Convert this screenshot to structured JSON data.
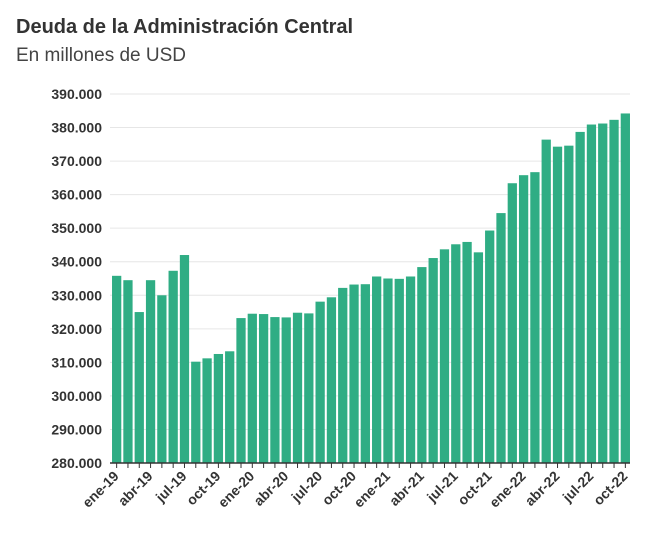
{
  "header": {
    "title": "Deuda de la Administración Central",
    "subtitle": "En millones de USD"
  },
  "colors": {
    "bar": "#2fad84",
    "grid": "#e6e6e6",
    "axis": "#333333",
    "text": "#333333"
  },
  "chart_data": {
    "type": "bar",
    "title": "Deuda de la Administración Central",
    "subtitle": "En millones de USD",
    "xlabel": "",
    "ylabel": "",
    "ylim": [
      280000,
      390000
    ],
    "yticks": [
      280000,
      290000,
      300000,
      310000,
      320000,
      330000,
      340000,
      350000,
      360000,
      370000,
      380000,
      390000
    ],
    "ytick_labels": [
      "280.000",
      "290.000",
      "300.000",
      "310.000",
      "320.000",
      "330.000",
      "340.000",
      "350.000",
      "360.000",
      "370.000",
      "380.000",
      "390.000"
    ],
    "grid": true,
    "categories": [
      "ene-19",
      "feb-19",
      "mar-19",
      "abr-19",
      "may-19",
      "jun-19",
      "jul-19",
      "ago-19",
      "sep-19",
      "oct-19",
      "nov-19",
      "dic-19",
      "ene-20",
      "feb-20",
      "mar-20",
      "abr-20",
      "may-20",
      "jun-20",
      "jul-20",
      "ago-20",
      "sep-20",
      "oct-20",
      "nov-20",
      "dic-20",
      "ene-21",
      "feb-21",
      "mar-21",
      "abr-21",
      "may-21",
      "jun-21",
      "jul-21",
      "ago-21",
      "sep-21",
      "oct-21",
      "nov-21",
      "dic-21",
      "ene-22",
      "feb-22",
      "mar-22",
      "abr-22",
      "may-22",
      "jun-22",
      "jul-22",
      "ago-22",
      "sep-22",
      "oct-22"
    ],
    "xtick_labels": [
      "ene-19",
      "abr-19",
      "jul-19",
      "oct-19",
      "ene-20",
      "abr-20",
      "jul-20",
      "oct-20",
      "ene-21",
      "abr-21",
      "jul-21",
      "oct-21",
      "ene-22",
      "abr-22",
      "jul-22",
      "oct-22"
    ],
    "values": [
      335800,
      334500,
      325000,
      334500,
      330000,
      337300,
      342000,
      310200,
      311200,
      312500,
      313300,
      323200,
      324500,
      324400,
      323500,
      323400,
      324800,
      324600,
      328100,
      329400,
      332200,
      333200,
      333300,
      335600,
      335000,
      334900,
      335600,
      338400,
      341100,
      343700,
      345200,
      345900,
      342800,
      349300,
      354500,
      363400,
      365800,
      366700,
      376400,
      374300,
      374600,
      378700,
      380900,
      381200,
      382300,
      384200
    ]
  }
}
